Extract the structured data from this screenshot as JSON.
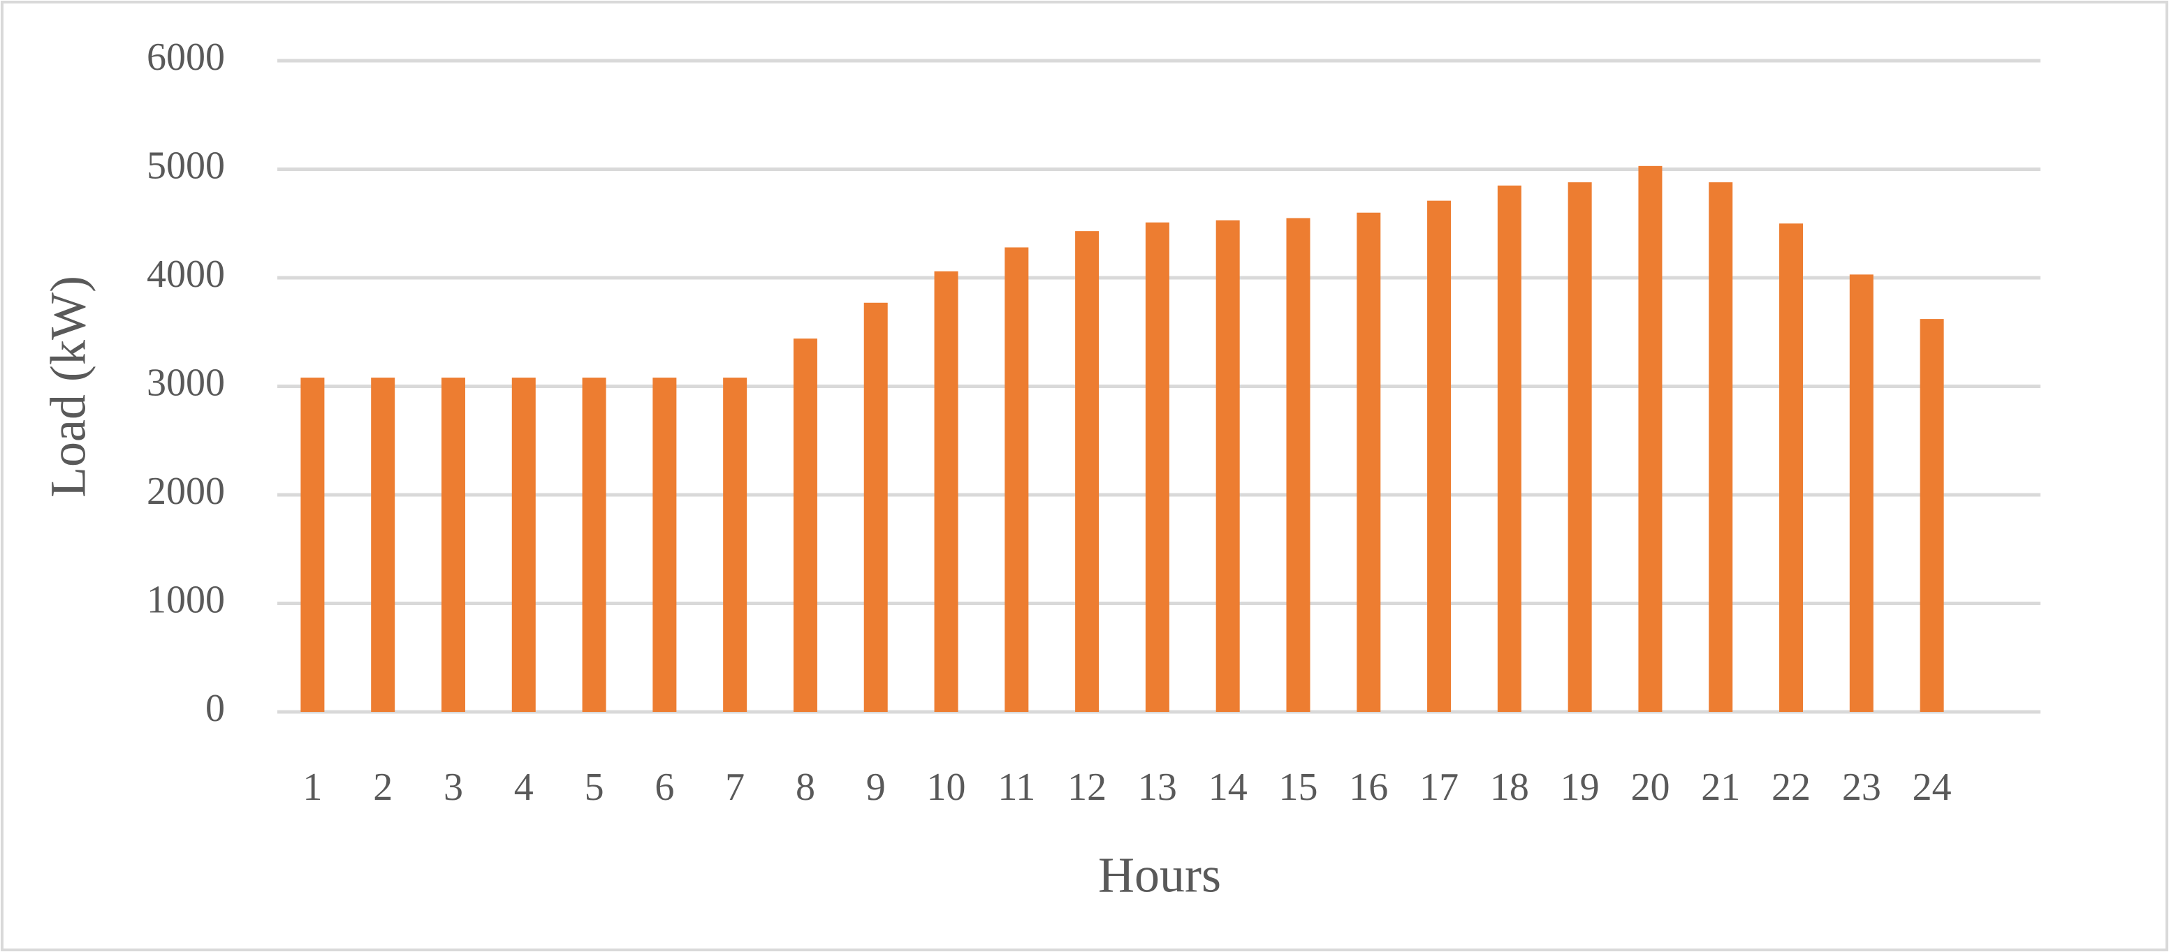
{
  "chart_data": {
    "type": "bar",
    "x_label": "Hours",
    "y_label": "Load (kW)",
    "categories": [
      "1",
      "2",
      "3",
      "4",
      "5",
      "6",
      "7",
      "8",
      "9",
      "10",
      "11",
      "12",
      "13",
      "14",
      "15",
      "16",
      "17",
      "18",
      "19",
      "20",
      "21",
      "22",
      "23",
      "24"
    ],
    "values": [
      3080,
      3080,
      3080,
      3080,
      3080,
      3080,
      3080,
      3440,
      3770,
      4060,
      4280,
      4430,
      4510,
      4530,
      4550,
      4600,
      4710,
      4850,
      4880,
      5030,
      4880,
      4500,
      4030,
      3620
    ],
    "color": "#ed7d31",
    "ylim": [
      0,
      6000
    ],
    "yticks": [
      0,
      1000,
      2000,
      3000,
      4000,
      5000,
      6000
    ],
    "grid": true
  }
}
